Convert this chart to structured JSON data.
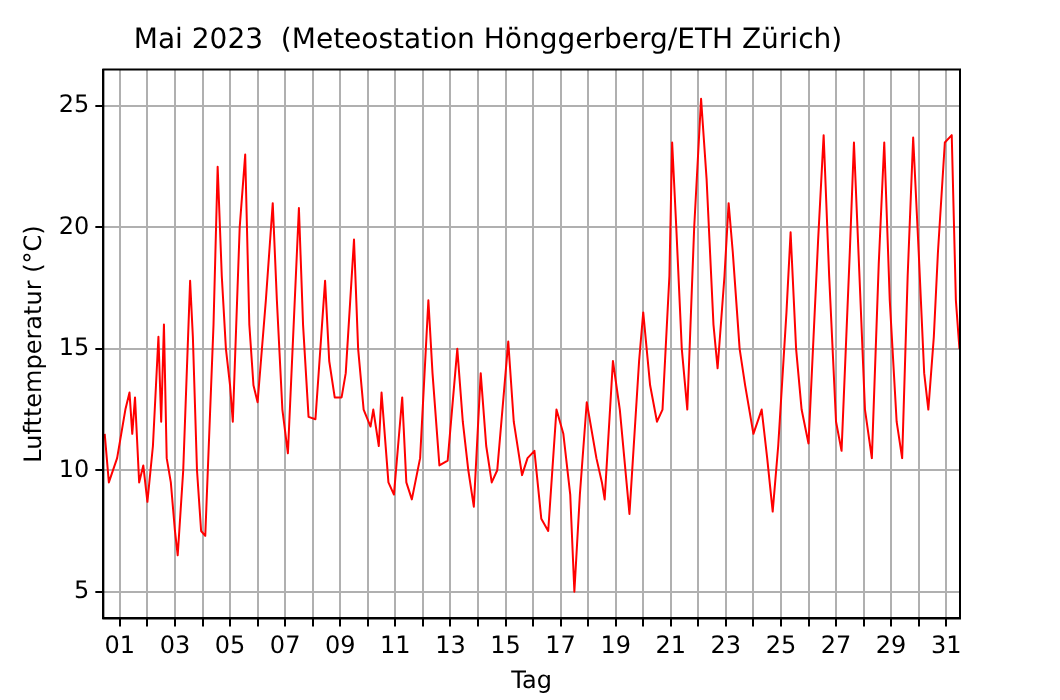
{
  "chart_data": {
    "type": "line",
    "title": "Mai 2023  (Meteostation Hönggerberg/ETH Zürich)",
    "xlabel": "Tag",
    "ylabel": "Lufttemperatur (°C)",
    "xlim": [
      0.4,
      31.5
    ],
    "ylim": [
      3.9,
      26.5
    ],
    "yticks": [
      5,
      10,
      15,
      20,
      25
    ],
    "xticks": [
      {
        "value": 1,
        "label": "01"
      },
      {
        "value": 2,
        "label": null
      },
      {
        "value": 3,
        "label": "03"
      },
      {
        "value": 4,
        "label": null
      },
      {
        "value": 5,
        "label": "05"
      },
      {
        "value": 6,
        "label": null
      },
      {
        "value": 7,
        "label": "07"
      },
      {
        "value": 8,
        "label": null
      },
      {
        "value": 9,
        "label": "09"
      },
      {
        "value": 10,
        "label": null
      },
      {
        "value": 11,
        "label": "11"
      },
      {
        "value": 12,
        "label": null
      },
      {
        "value": 13,
        "label": "13"
      },
      {
        "value": 14,
        "label": null
      },
      {
        "value": 15,
        "label": "15"
      },
      {
        "value": 16,
        "label": null
      },
      {
        "value": 17,
        "label": "17"
      },
      {
        "value": 18,
        "label": null
      },
      {
        "value": 19,
        "label": "19"
      },
      {
        "value": 20,
        "label": null
      },
      {
        "value": 21,
        "label": "21"
      },
      {
        "value": 22,
        "label": null
      },
      {
        "value": 23,
        "label": "23"
      },
      {
        "value": 24,
        "label": null
      },
      {
        "value": 25,
        "label": "25"
      },
      {
        "value": 26,
        "label": null
      },
      {
        "value": 27,
        "label": "27"
      },
      {
        "value": 28,
        "label": null
      },
      {
        "value": 29,
        "label": "29"
      },
      {
        "value": 30,
        "label": null
      },
      {
        "value": 31,
        "label": "31"
      }
    ],
    "grid": true,
    "legend": false,
    "marker": "none",
    "line_style": "solid",
    "series": [
      {
        "color": "#ff0000",
        "x": [
          0.45,
          0.6,
          0.9,
          1.2,
          1.35,
          1.45,
          1.55,
          1.7,
          1.85,
          2.0,
          2.2,
          2.4,
          2.5,
          2.6,
          2.7,
          2.85,
          3.0,
          3.1,
          3.3,
          3.55,
          3.65,
          3.8,
          3.95,
          4.1,
          4.4,
          4.55,
          4.7,
          4.85,
          5.0,
          5.1,
          5.35,
          5.55,
          5.7,
          5.85,
          6.0,
          6.3,
          6.55,
          6.7,
          6.9,
          7.1,
          7.5,
          7.65,
          7.85,
          8.1,
          8.45,
          8.6,
          8.8,
          9.05,
          9.2,
          9.5,
          9.65,
          9.85,
          10.1,
          10.2,
          10.4,
          10.5,
          10.75,
          10.95,
          11.1,
          11.25,
          11.4,
          11.6,
          11.9,
          12.2,
          12.35,
          12.6,
          12.9,
          13.25,
          13.45,
          13.65,
          13.85,
          14.1,
          14.3,
          14.5,
          14.7,
          15.1,
          15.3,
          15.6,
          15.8,
          16.05,
          16.3,
          16.55,
          16.85,
          17.1,
          17.35,
          17.5,
          17.7,
          17.95,
          18.3,
          18.5,
          18.6,
          18.9,
          19.15,
          19.5,
          19.85,
          20.0,
          20.25,
          20.5,
          20.7,
          20.95,
          21.05,
          21.2,
          21.4,
          21.6,
          21.85,
          22.1,
          22.3,
          22.55,
          22.7,
          22.95,
          23.1,
          23.25,
          23.5,
          23.7,
          24.0,
          24.3,
          24.5,
          24.7,
          24.9,
          25.2,
          25.35,
          25.55,
          25.75,
          26.0,
          26.35,
          26.55,
          26.75,
          27.0,
          27.2,
          27.5,
          27.65,
          27.85,
          28.05,
          28.3,
          28.55,
          28.75,
          28.95,
          29.2,
          29.4,
          29.6,
          29.8,
          30.0,
          30.2,
          30.35,
          30.55,
          30.7,
          30.95,
          31.2,
          31.35,
          31.48
        ],
        "values": [
          11.5,
          9.5,
          10.5,
          12.5,
          13.2,
          11.5,
          13,
          9.5,
          10.2,
          8.7,
          11,
          15.5,
          12,
          16,
          10.5,
          9.5,
          7.5,
          6.5,
          10,
          17.8,
          15.5,
          10,
          7.5,
          7.3,
          16,
          22.5,
          18,
          15,
          13.5,
          12,
          20,
          23,
          16,
          13.5,
          12.8,
          17,
          21,
          17,
          12.5,
          10.7,
          20.8,
          16,
          12.2,
          12.1,
          17.8,
          14.5,
          13,
          13,
          14,
          19.5,
          15,
          12.5,
          11.8,
          12.5,
          11,
          13.2,
          9.5,
          9,
          11,
          13,
          9.5,
          8.8,
          10.5,
          17,
          14,
          10.2,
          10.4,
          15,
          12,
          10,
          8.5,
          14,
          11,
          9.5,
          10,
          15.3,
          12,
          9.8,
          10.5,
          10.8,
          8,
          7.5,
          12.5,
          11.5,
          9,
          5,
          9,
          12.8,
          10.5,
          9.5,
          8.8,
          14.5,
          12.5,
          8.2,
          14.5,
          16.5,
          13.5,
          12,
          12.5,
          18,
          23.5,
          20,
          15,
          12.5,
          20,
          25.3,
          22,
          16,
          14.2,
          18,
          21,
          19,
          15,
          13.5,
          11.5,
          12.5,
          10.5,
          8.3,
          11,
          16.5,
          19.8,
          15,
          12.5,
          11.1,
          19.5,
          23.8,
          18,
          12,
          10.8,
          19,
          23.5,
          18,
          12.5,
          10.5,
          18.5,
          23.5,
          17,
          12,
          10.5,
          18,
          23.7,
          19,
          14,
          12.5,
          15.5,
          19,
          23.5,
          23.8,
          17,
          15
        ]
      }
    ]
  }
}
